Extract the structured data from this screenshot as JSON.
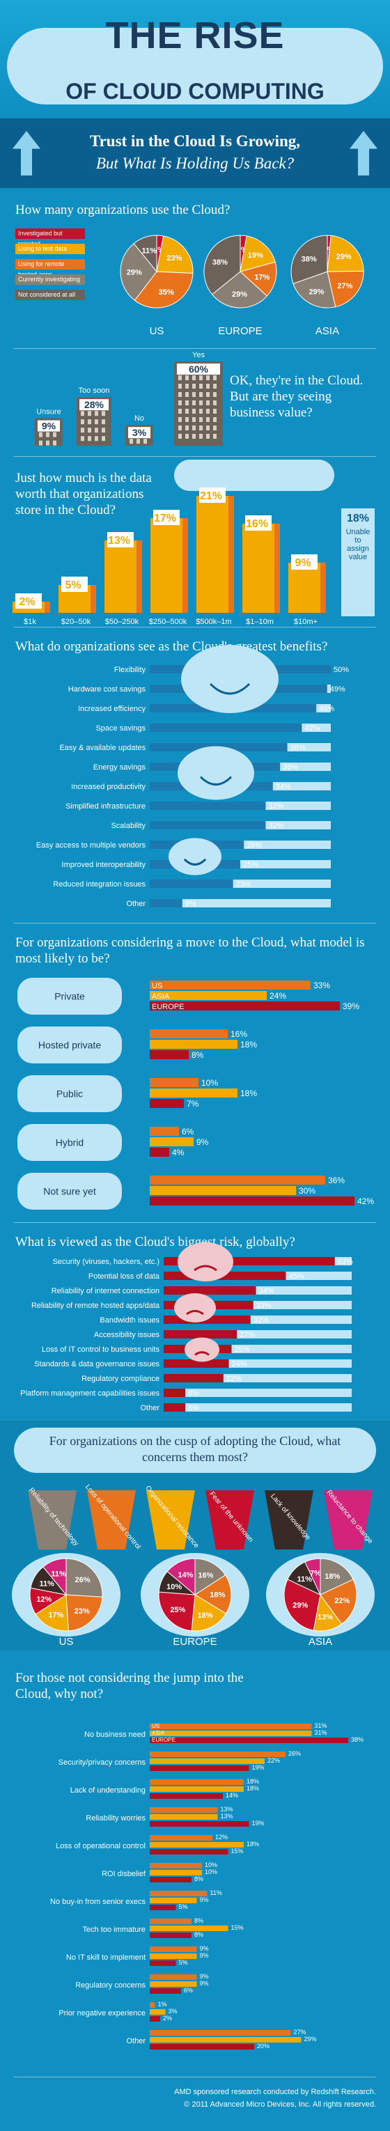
{
  "header": {
    "title_line1": "THE RISE",
    "title_line2": "OF CLOUD COMPUTING"
  },
  "banner": {
    "line1": "Trust in the Cloud Is Growing,",
    "line2": "But What Is Holding Us Back?"
  },
  "usage": {
    "question": "How many organizations use the Cloud?",
    "legend": [
      "Investigated but rejected",
      "Using to test data",
      "Using for remote hosted apps",
      "Currently investigating",
      "Not considered at all"
    ],
    "colors": {
      "rejected": "#c8102e",
      "test": "#f2a900",
      "remote": "#e8731c",
      "investigating": "#8a7f73",
      "not": "#6c6259"
    },
    "regions": [
      {
        "name": "US",
        "labels": [
          "3%",
          "23%",
          "35%",
          "29%",
          "11%"
        ],
        "values": [
          3,
          23,
          35,
          29,
          11
        ]
      },
      {
        "name": "EUROPE",
        "labels": [
          "3%",
          "19%",
          "17%",
          "29%",
          "38%"
        ],
        "values": [
          3,
          19,
          17,
          29,
          38
        ]
      },
      {
        "name": "ASIA",
        "labels": [
          "2%",
          "29%",
          "27%",
          "29%",
          "38%"
        ],
        "values": [
          2,
          29,
          27,
          29,
          38
        ]
      }
    ]
  },
  "value": {
    "question": "OK, they're in the Cloud. But are they seeing business value?",
    "items": [
      {
        "label": "Unsure",
        "pct": "9%",
        "v": 9
      },
      {
        "label": "Too soon",
        "pct": "28%",
        "v": 28
      },
      {
        "label": "No",
        "pct": "3%",
        "v": 3
      },
      {
        "label": "Yes",
        "pct": "60%",
        "v": 60
      }
    ]
  },
  "worth": {
    "question": "Just how much is the data worth that organizations store in the Cloud?",
    "chart_data": {
      "type": "bar",
      "categories": [
        "$1k",
        "$20–50k",
        "$50–250k",
        "$250–500k",
        "$500k–1m",
        "$1–10m",
        "$10m+"
      ],
      "values": [
        2,
        5,
        13,
        17,
        21,
        16,
        9
      ],
      "labels": [
        "2%",
        "5%",
        "13%",
        "17%",
        "21%",
        "16%",
        "9%"
      ]
    },
    "unable_pct": "18%",
    "unable_label": "Unable to assign value"
  },
  "benefits": {
    "question": "What do organizations see as the Cloud's greatest benefits?",
    "chart_data": {
      "type": "bar",
      "categories": [
        "Flexibility",
        "Hardware cost savings",
        "Increased efficiency",
        "Space savings",
        "Easy & available updates",
        "Energy savings",
        "Increased productivity",
        "Simplified infrastructure",
        "Scalability",
        "Easy access to multiple vendors",
        "Improved interoperability",
        "Reduced integration issues",
        "Other"
      ],
      "values": [
        50,
        49,
        46,
        42,
        38,
        36,
        34,
        32,
        32,
        26,
        25,
        23,
        9
      ],
      "labels": [
        "50%",
        "49%",
        "46%",
        "42%",
        "38%",
        "36%",
        "34%",
        "32%",
        "32%",
        "26%",
        "25%",
        "23%",
        "9%"
      ]
    }
  },
  "model": {
    "question": "For organizations considering a move to the Cloud, what model is most likely to be?",
    "series_names": [
      "US",
      "ASIA",
      "EUROPE"
    ],
    "colors": [
      "#e8731c",
      "#f2a900",
      "#b01020"
    ],
    "chart_data": {
      "type": "bar",
      "categories": [
        "Private",
        "Hosted private",
        "Public",
        "Hybrid",
        "Not sure yet"
      ],
      "series": [
        {
          "name": "US",
          "values": [
            33,
            16,
            10,
            6,
            36
          ]
        },
        {
          "name": "ASIA",
          "values": [
            24,
            18,
            18,
            9,
            30
          ]
        },
        {
          "name": "EUROPE",
          "values": [
            39,
            8,
            7,
            4,
            42
          ]
        }
      ]
    },
    "labels": [
      [
        "33%",
        "24%",
        "39%"
      ],
      [
        "16%",
        "18%",
        "8%"
      ],
      [
        "10%",
        "18%",
        "7%"
      ],
      [
        "6%",
        "9%",
        "4%"
      ],
      [
        "36%",
        "30%",
        "42%"
      ]
    ]
  },
  "risk": {
    "question": "What is viewed as the Cloud's biggest risk, globally?",
    "chart_data": {
      "type": "bar",
      "categories": [
        "Security (viruses, hackers, etc.)",
        "Potential loss of data",
        "Reliability of internet connection",
        "Reliability of remote hosted apps/data",
        "Bandwidth issues",
        "Accessibility issues",
        "Loss of IT control to business units",
        "Standards & data governance issues",
        "Regulatory compliance",
        "Platform management capabilities issues",
        "Other"
      ],
      "values": [
        63,
        45,
        34,
        33,
        32,
        27,
        25,
        24,
        22,
        8,
        8
      ],
      "labels": [
        "63%",
        "45%",
        "34%",
        "33%",
        "32%",
        "27%",
        "25%",
        "24%",
        "22%",
        "8%",
        "8%"
      ]
    }
  },
  "concerns": {
    "question": "For organizations on the cusp of adopting the Cloud, what concerns them most?",
    "categories": [
      "Reliability of technology",
      "Loss of operational control",
      "Organizational resistance",
      "Fear of the unknown",
      "Lack of knowledge",
      "Reluctance to change"
    ],
    "colors": [
      "#8a7f73",
      "#e8731c",
      "#f2a900",
      "#c8102e",
      "#3a2a25",
      "#d4237a"
    ],
    "regions": [
      {
        "name": "US",
        "values": [
          26,
          23,
          17,
          12,
          11,
          11
        ],
        "labels": [
          "26%",
          "23%",
          "17%",
          "12%",
          "11%",
          "11%"
        ]
      },
      {
        "name": "EUROPE",
        "values": [
          16,
          18,
          18,
          25,
          10,
          14
        ],
        "labels": [
          "16%",
          "18%",
          "18%",
          "25%",
          "10%",
          "14%"
        ]
      },
      {
        "name": "ASIA",
        "values": [
          18,
          22,
          13,
          29,
          11,
          7
        ],
        "labels": [
          "18%",
          "22%",
          "13%",
          "29%",
          "11%",
          "7%"
        ]
      }
    ]
  },
  "why_not": {
    "question": "For those not considering the jump into the Cloud, why not?",
    "series_names": [
      "US",
      "ASIA",
      "EUROPE"
    ],
    "chart_data": {
      "type": "bar",
      "categories": [
        "No business need",
        "Security/privacy concerns",
        "Lack of understanding",
        "Reliability worries",
        "Loss of operational control",
        "ROI disbelief",
        "No buy-in from senior execs",
        "Tech too immature",
        "No IT skill to implement",
        "Regulatory concerns",
        "Prior negative experience",
        "Other"
      ],
      "series": [
        {
          "name": "US",
          "values": [
            31,
            26,
            18,
            13,
            12,
            10,
            11,
            8,
            9,
            9,
            1,
            27
          ]
        },
        {
          "name": "ASIA",
          "values": [
            31,
            22,
            18,
            13,
            18,
            10,
            9,
            15,
            9,
            9,
            3,
            29
          ]
        },
        {
          "name": "EUROPE",
          "values": [
            38,
            19,
            14,
            19,
            15,
            8,
            5,
            8,
            5,
            6,
            2,
            20
          ]
        }
      ]
    },
    "labels": [
      [
        "31%",
        "31%",
        "38%"
      ],
      [
        "26%",
        "22%",
        "19%"
      ],
      [
        "18%",
        "18%",
        "14%"
      ],
      [
        "13%",
        "13%",
        "19%"
      ],
      [
        "12%",
        "18%",
        "15%"
      ],
      [
        "10%",
        "10%",
        "8%"
      ],
      [
        "11%",
        "9%",
        "5%"
      ],
      [
        "8%",
        "15%",
        "8%"
      ],
      [
        "9%",
        "9%",
        "5%"
      ],
      [
        "9%",
        "9%",
        "6%"
      ],
      [
        "1%",
        "3%",
        "2%"
      ],
      [
        "27%",
        "29%",
        "20%"
      ]
    ]
  },
  "footer": {
    "line1": "AMD sponsored research conducted by Redshift Research.",
    "line2": "© 2011 Advanced Micro Devices, Inc. All rights reserved."
  }
}
